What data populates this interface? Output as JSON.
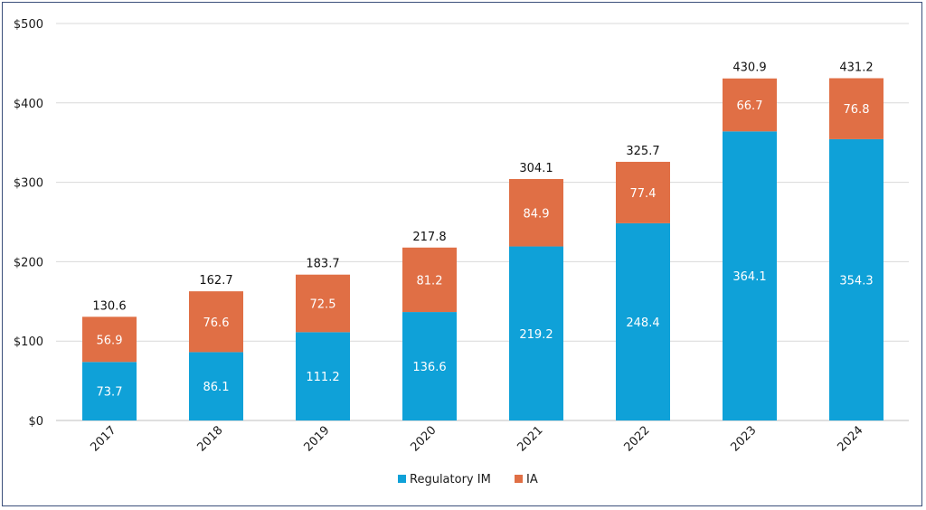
{
  "chart_data": {
    "type": "bar",
    "stacked": true,
    "categories": [
      "2017",
      "2018",
      "2019",
      "2020",
      "2021",
      "2022",
      "2023",
      "2024"
    ],
    "series": [
      {
        "name": "Regulatory IM",
        "color": "#0fa1d8",
        "values": [
          73.7,
          86.1,
          111.2,
          136.6,
          219.2,
          248.4,
          364.1,
          354.3
        ]
      },
      {
        "name": "IA",
        "color": "#e06f45",
        "values": [
          56.9,
          76.6,
          72.5,
          81.2,
          84.9,
          77.4,
          66.7,
          76.8
        ]
      }
    ],
    "totals": [
      130.6,
      162.7,
      183.7,
      217.8,
      304.1,
      325.7,
      430.9,
      431.2
    ],
    "ylim": [
      0,
      500
    ],
    "yticks": [
      0,
      100,
      200,
      300,
      400,
      500
    ],
    "ytick_labels": [
      "$0",
      "$100",
      "$200",
      "$300",
      "$400",
      "$500"
    ],
    "grid": true,
    "legend_position": "bottom-center",
    "title": "",
    "xlabel": "",
    "ylabel": ""
  }
}
